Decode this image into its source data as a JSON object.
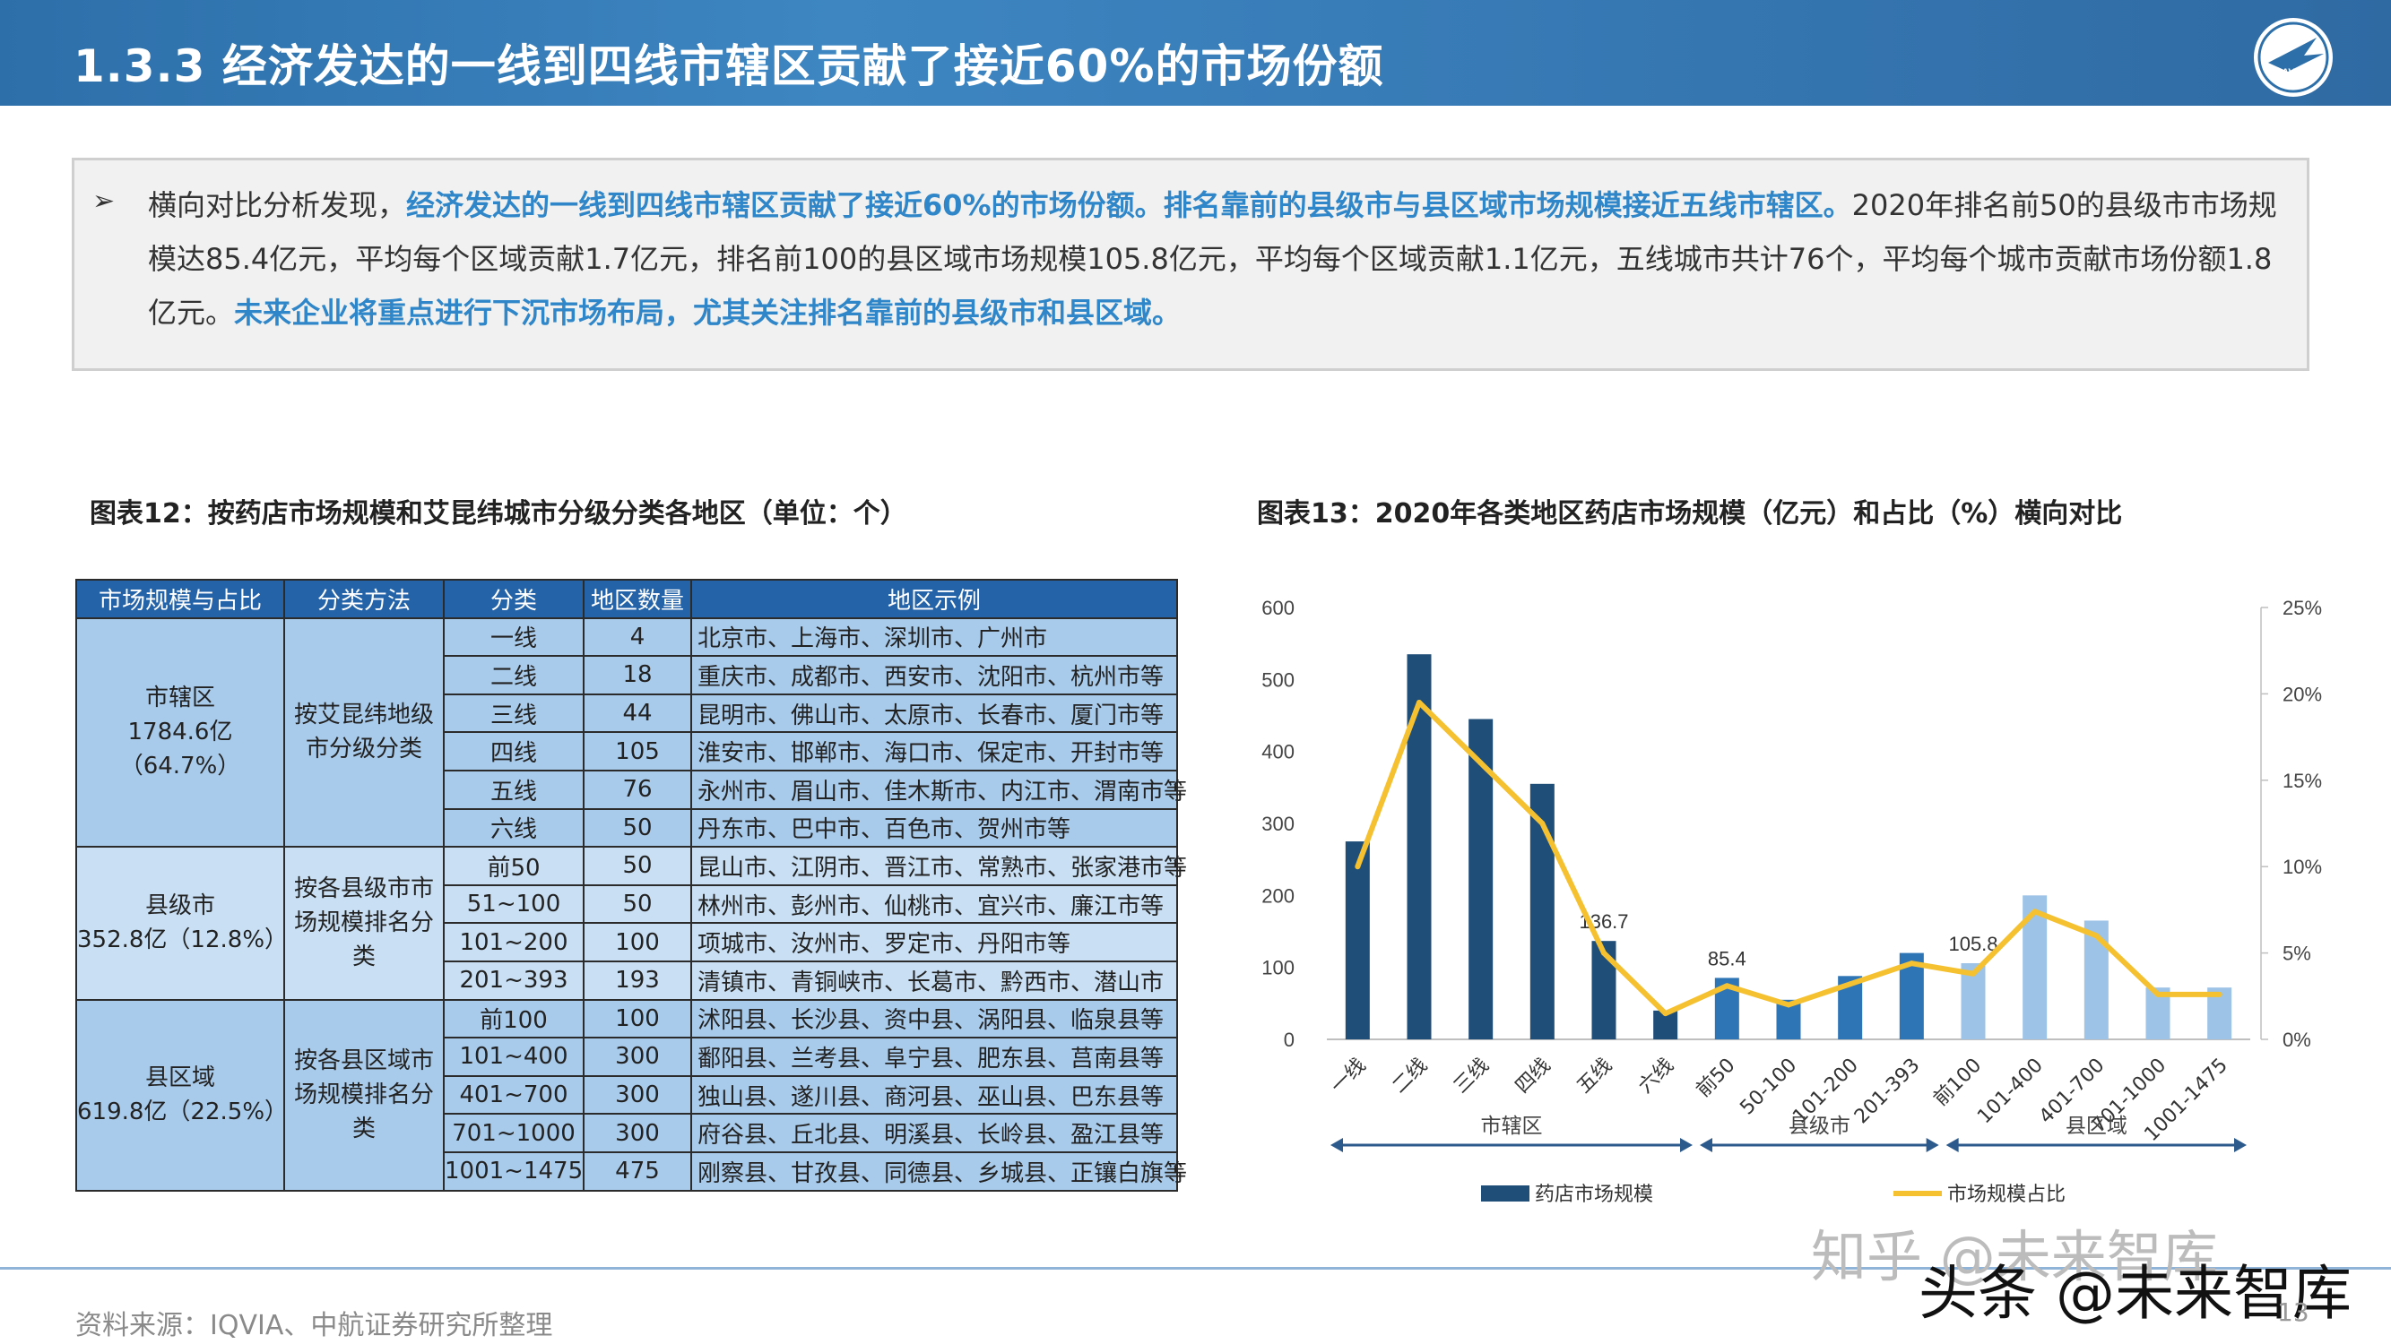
{
  "header": {
    "title": "1.3.3 经济发达的一线到四线市辖区贡献了接近60%的市场份额"
  },
  "summary": {
    "bullet": "➢",
    "segments": [
      {
        "text": "横向对比分析发现，",
        "highlight": false
      },
      {
        "text": "经济发达的一线到四线市辖区贡献了接近60%的市场份额。排名靠前的县级市与县区域市场规模接近五线市辖区。",
        "highlight": true
      },
      {
        "text": "2020年排名前50的县级市市场规模达85.4亿元，平均每个区域贡献1.7亿元，排名前100的县区域市场规模105.8亿元，平均每个区域贡献1.1亿元，五线城市共计76个，平均每个城市贡献市场份额1.8亿元。",
        "highlight": false
      },
      {
        "text": "未来企业将重点进行下沉市场布局，尤其关注排名靠前的县级市和县区域。",
        "highlight": true
      }
    ]
  },
  "table_caption": "图表12：按药店市场规模和艾昆纬城市分级分类各地区（单位：个）",
  "table": {
    "headers": [
      "市场规模与占比",
      "分类方法",
      "分类",
      "地区数量",
      "地区示例"
    ],
    "groups": [
      {
        "scale": "市辖区",
        "share": "1784.6亿（64.7%）",
        "method": "按艾昆纬地级市分级分类",
        "rows": [
          {
            "cls": "一线",
            "count": "4",
            "examples": "北京市、上海市、深圳市、广州市"
          },
          {
            "cls": "二线",
            "count": "18",
            "examples": "重庆市、成都市、西安市、沈阳市、杭州市等"
          },
          {
            "cls": "三线",
            "count": "44",
            "examples": "昆明市、佛山市、太原市、长春市、厦门市等"
          },
          {
            "cls": "四线",
            "count": "105",
            "examples": "淮安市、邯郸市、海口市、保定市、开封市等"
          },
          {
            "cls": "五线",
            "count": "76",
            "examples": "永州市、眉山市、佳木斯市、内江市、渭南市等"
          },
          {
            "cls": "六线",
            "count": "50",
            "examples": "丹东市、巴中市、百色市、贺州市等"
          }
        ]
      },
      {
        "scale": "县级市",
        "share": "352.8亿（12.8%）",
        "method": "按各县级市市场规模排名分类",
        "rows": [
          {
            "cls": "前50",
            "count": "50",
            "examples": "昆山市、江阴市、晋江市、常熟市、张家港市等"
          },
          {
            "cls": "51~100",
            "count": "50",
            "examples": "林州市、彭州市、仙桃市、宜兴市、廉江市等"
          },
          {
            "cls": "101~200",
            "count": "100",
            "examples": "项城市、汝州市、罗定市、丹阳市等"
          },
          {
            "cls": "201~393",
            "count": "193",
            "examples": "清镇市、青铜峡市、长葛市、黔西市、潜山市"
          }
        ]
      },
      {
        "scale": "县区域",
        "share": "619.8亿（22.5%）",
        "method": "按各县区域市场规模排名分类",
        "rows": [
          {
            "cls": "前100",
            "count": "100",
            "examples": "沭阳县、长沙县、资中县、涡阳县、临泉县等"
          },
          {
            "cls": "101~400",
            "count": "300",
            "examples": "鄱阳县、兰考县、阜宁县、肥东县、莒南县等"
          },
          {
            "cls": "401~700",
            "count": "300",
            "examples": "独山县、遂川县、商河县、巫山县、巴东县等"
          },
          {
            "cls": "701~1000",
            "count": "300",
            "examples": "府谷县、丘北县、明溪县、长岭县、盈江县等"
          },
          {
            "cls": "1001~1475",
            "count": "475",
            "examples": "刚察县、甘孜县、同德县、乡城县、正镶白旗等"
          }
        ]
      }
    ]
  },
  "chart_caption": "图表13：2020年各类地区药店市场规模（亿元）和占比（%）横向对比",
  "chart_data": {
    "type": "bar",
    "categories": [
      "一线",
      "二线",
      "三线",
      "四线",
      "五线",
      "六线",
      "前50",
      "50-100",
      "101-200",
      "201-393",
      "前100",
      "101-400",
      "401-700",
      "701-1000",
      "1001-1475"
    ],
    "series": [
      {
        "name": "药店市场规模",
        "type": "bar",
        "axis": "left",
        "values": [
          275,
          535,
          445,
          355,
          136.7,
          40,
          85.4,
          55,
          88,
          120,
          105.8,
          200,
          165,
          72,
          72
        ]
      },
      {
        "name": "市场规模占比",
        "type": "line",
        "axis": "right",
        "values": [
          10,
          19.5,
          16,
          12.5,
          5,
          1.5,
          3.1,
          2,
          3.2,
          4.4,
          3.8,
          7.4,
          6,
          2.6,
          2.6
        ]
      }
    ],
    "bar_colors": [
      "#1f4e79",
      "#1f4e79",
      "#1f4e79",
      "#1f4e79",
      "#1f4e79",
      "#1f4e79",
      "#2e75b6",
      "#2e75b6",
      "#2e75b6",
      "#2e75b6",
      "#9dc3e6",
      "#9dc3e6",
      "#9dc3e6",
      "#9dc3e6",
      "#9dc3e6"
    ],
    "line_color": "#f5c131",
    "data_labels": [
      {
        "index": 4,
        "text": "136.7"
      },
      {
        "index": 6,
        "text": "85.4"
      },
      {
        "index": 10,
        "text": "105.8"
      }
    ],
    "ylim_left": [
      0,
      600
    ],
    "yticks_left": [
      "0",
      "100",
      "200",
      "300",
      "400",
      "500",
      "600"
    ],
    "ylim_right": [
      0,
      25
    ],
    "yticks_right": [
      "0%",
      "5%",
      "10%",
      "15%",
      "20%",
      "25%"
    ],
    "groups": [
      {
        "label": "市辖区",
        "from": 0,
        "to": 5
      },
      {
        "label": "县级市",
        "from": 6,
        "to": 9
      },
      {
        "label": "县区域",
        "from": 10,
        "to": 14
      }
    ],
    "legend": [
      "药店市场规模",
      "市场规模占比"
    ],
    "legend_position": "bottom"
  },
  "footer": {
    "source": "资料来源：IQVIA、中航证券研究所整理",
    "page": "13",
    "watermark1": "知乎 @未来智库",
    "watermark2": "头条 @未来智库"
  }
}
